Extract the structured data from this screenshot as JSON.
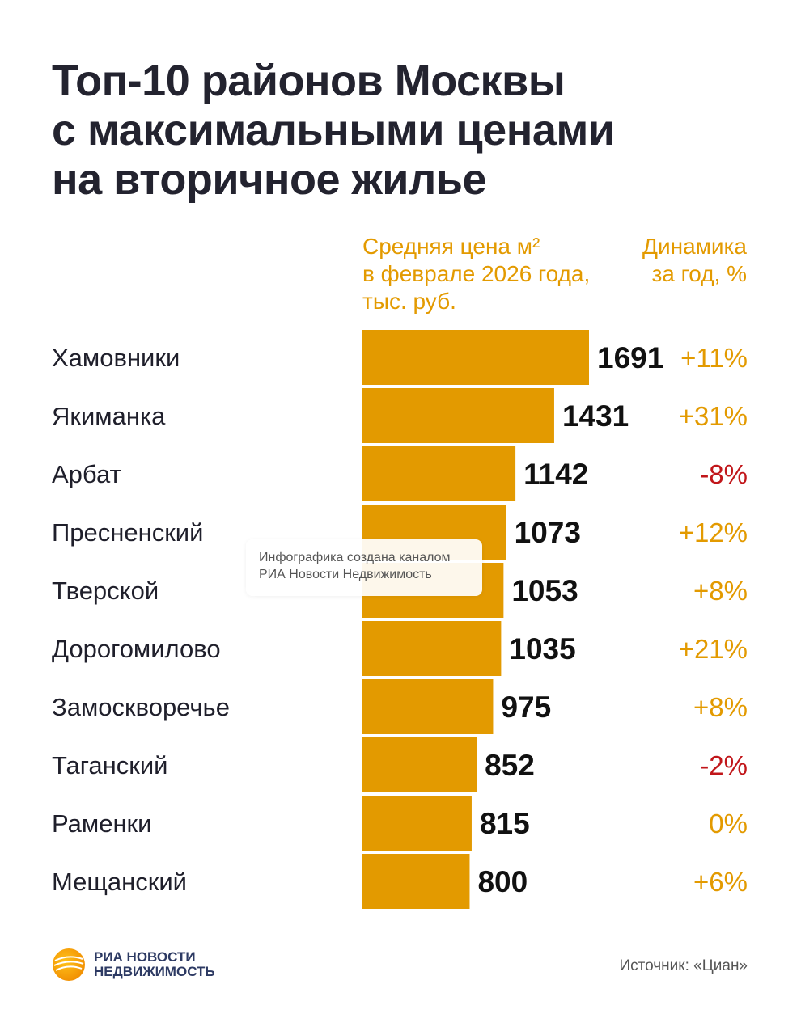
{
  "title_lines": [
    "Топ-10 районов Москвы",
    "с максимальными ценами",
    "на вторичное жилье"
  ],
  "col_price_header": [
    "Средняя цена м²",
    "в феврале 2026 года,",
    "тыс. руб."
  ],
  "col_change_header": [
    "Динамика",
    "за год, %"
  ],
  "watermark": [
    "Инфографика создана каналом",
    "РИА Новости Недвижимость"
  ],
  "logo": [
    "РИА НОВОСТИ",
    "НЕДВИЖИМОСТЬ"
  ],
  "source": "Источник: «Циан»",
  "colors": {
    "bar": "#e39a00",
    "positive": "#e39a00",
    "negative": "#c1161a",
    "neutral": "#e39a00",
    "text": "#1f1f2b"
  },
  "chart_data": {
    "type": "bar",
    "orientation": "horizontal",
    "title": "Топ-10 районов Москвы с максимальными ценами на вторичное жилье",
    "value_label": "Средняя цена м² в феврале 2026 года, тыс. руб.",
    "categories": [
      "Хамовники",
      "Якиманка",
      "Арбат",
      "Пресненский",
      "Тверской",
      "Дорогомилово",
      "Замоскворечье",
      "Таганский",
      "Раменки",
      "Мещанский"
    ],
    "values": [
      1691,
      1431,
      1142,
      1073,
      1053,
      1035,
      975,
      852,
      815,
      800
    ],
    "changes": [
      "+11%",
      "+31%",
      "-8%",
      "+12%",
      "+8%",
      "+21%",
      "+8%",
      "-2%",
      "0%",
      "+6%"
    ],
    "change_sign": [
      1,
      1,
      -1,
      1,
      1,
      1,
      1,
      -1,
      0,
      1
    ]
  }
}
